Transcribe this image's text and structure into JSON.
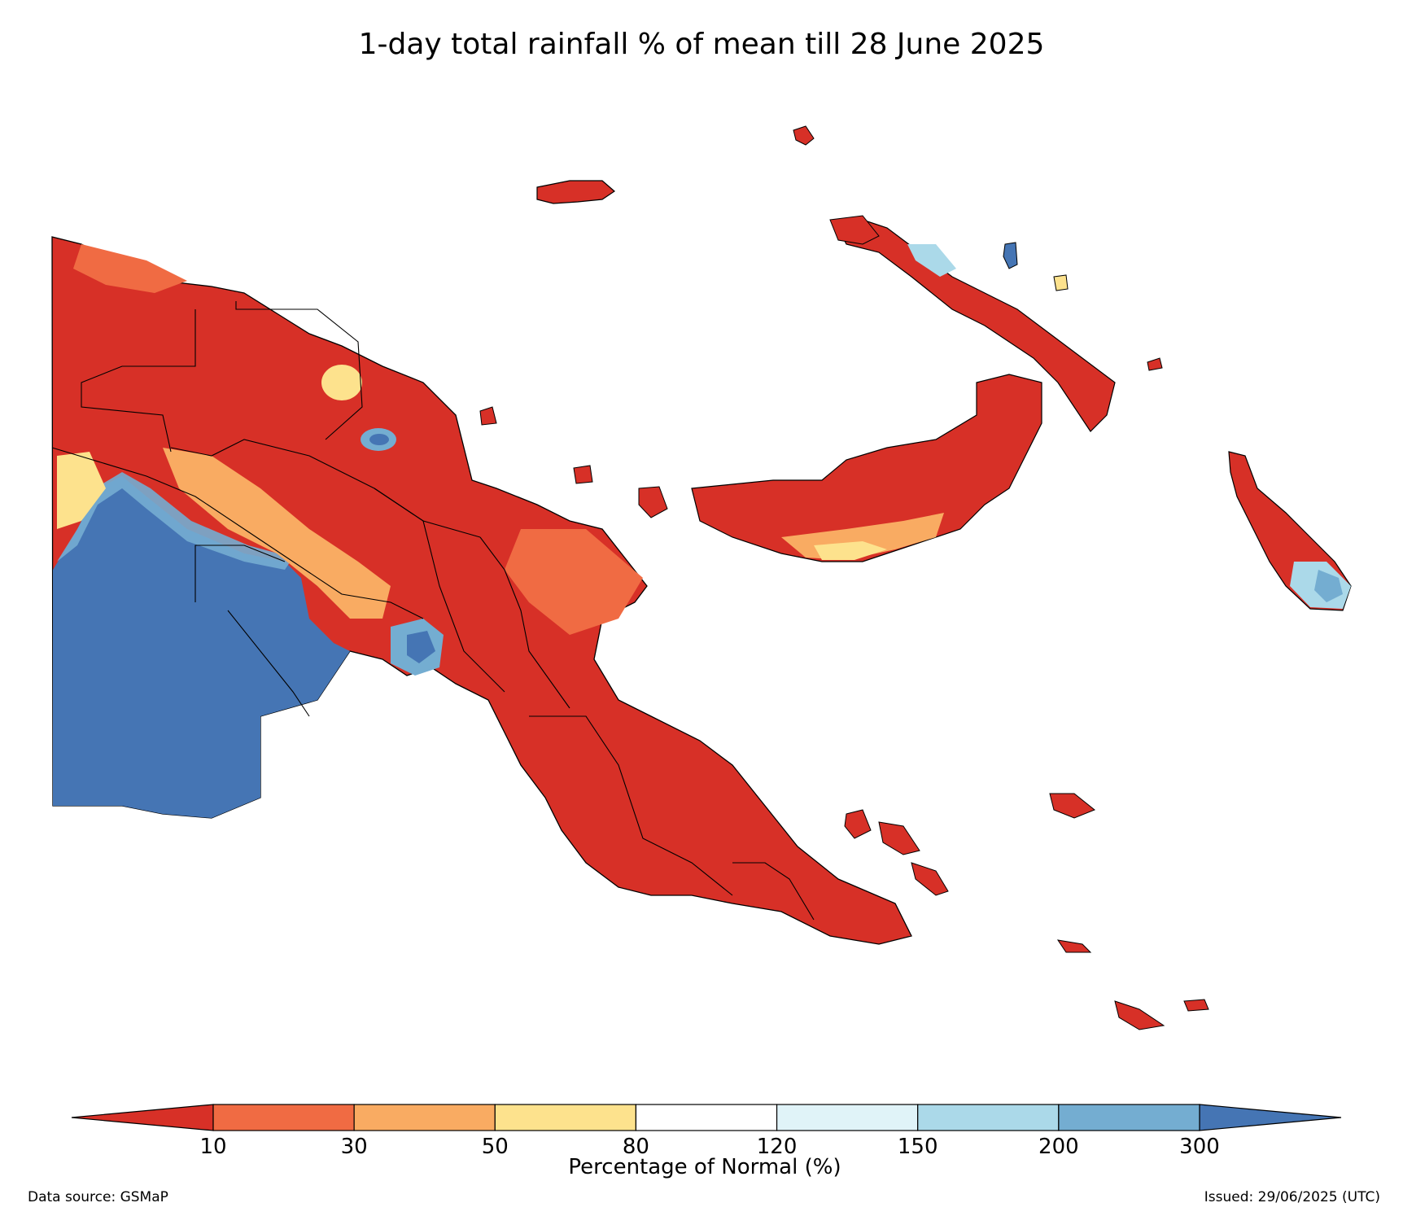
{
  "title": "1-day total rainfall % of mean till 28 June 2025",
  "colorbar": {
    "label": "Percentage of Normal (%)",
    "ticks": [
      "10",
      "30",
      "50",
      "80",
      "120",
      "150",
      "200",
      "300"
    ],
    "colors": {
      "below_10": "#d73027",
      "10_30": "#f06b43",
      "30_50": "#f9ab62",
      "50_80": "#fde28d",
      "80_120": "#ffffff",
      "120_150": "#e0f3f8",
      "150_200": "#abd9e9",
      "200_300": "#74add1",
      "above_300": "#4575b4"
    }
  },
  "data_source": "Data source: GSMaP",
  "issued": "Issued: 29/06/2025 (UTC)"
}
